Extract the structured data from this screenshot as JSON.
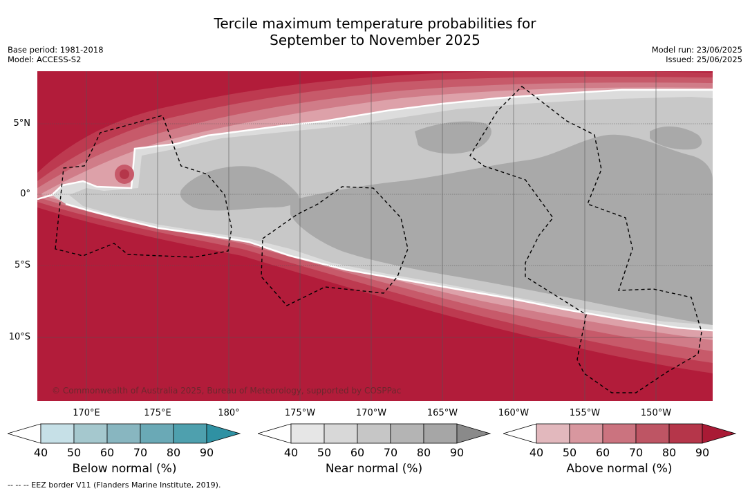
{
  "title_line1": "Tercile maximum temperature probabilities for",
  "title_line2": "September to November 2025",
  "base_period": "Base period: 1981-2018",
  "model": "Model: ACCESS-S2",
  "model_run": "Model run: 23/06/2025",
  "issued": "Issued: 25/06/2025",
  "copyright": "© Commonwealth of Australia 2025, Bureau of Meteorology, supported by COSPPac",
  "footnote": "--  --  -- EEZ border V11 (Flanders Marine Institute, 2019).",
  "lat_labels": [
    "5°N",
    "0°",
    "5°S",
    "10°S"
  ],
  "lon_labels": [
    "170°E",
    "175°E",
    "180°",
    "175°W",
    "170°W",
    "165°W",
    "160°W",
    "155°W",
    "150°W"
  ],
  "colorbars": [
    {
      "label": "Below normal (%)",
      "ticks": [
        "40",
        "50",
        "60",
        "70",
        "80",
        "90"
      ],
      "colors": [
        "#ffffff",
        "#c6e0e7",
        "#a5c8ce",
        "#88b6c0",
        "#6aa9b6",
        "#4ea0ae",
        "#2f91a3"
      ]
    },
    {
      "label": "Near normal (%)",
      "ticks": [
        "40",
        "50",
        "60",
        "70",
        "80",
        "90"
      ],
      "colors": [
        "#ffffff",
        "#e6e6e6",
        "#d8d8d8",
        "#c6c6c6",
        "#b4b4b4",
        "#a6a6a6",
        "#8a8a8a"
      ]
    },
    {
      "label": "Above normal (%)",
      "ticks": [
        "40",
        "50",
        "60",
        "70",
        "80",
        "90"
      ],
      "colors": [
        "#ffffff",
        "#e2b8bd",
        "#d8979f",
        "#cb737f",
        "#be5564",
        "#b5364a",
        "#a91a35"
      ]
    }
  ],
  "map_colors": {
    "above_90": "#b21c3a",
    "above_80": "#bd3a50",
    "above_70": "#c75a6a",
    "above_60": "#d07c88",
    "above_50": "#dda1a9",
    "near_60": "#c8c8c8",
    "near_80": "#a9a9a9",
    "near_50": "#dcdcdc"
  }
}
